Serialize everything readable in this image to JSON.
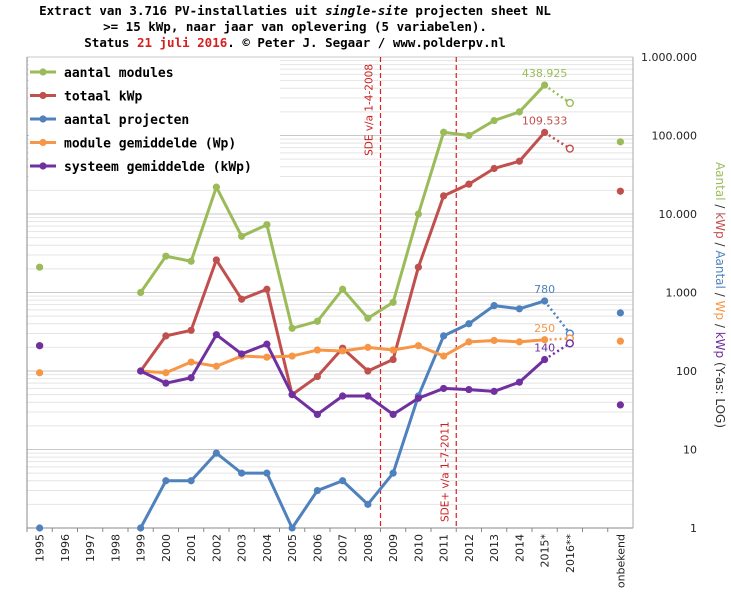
{
  "chart_data": {
    "type": "line",
    "title_lines": [
      [
        {
          "t": "Extract van 3.716 PV-installaties uit "
        },
        {
          "t": "single-site",
          "style": "it"
        },
        {
          "t": " projecten sheet NL"
        }
      ],
      [
        {
          "t": ">= 15 kWp, naar jaar van oplevering (5 variabelen)."
        }
      ],
      [
        {
          "t": "Status "
        },
        {
          "t": "21 juli 2016",
          "style": "red"
        },
        {
          "t": ". © Peter J. Segaar / www.polderpv.nl"
        }
      ]
    ],
    "categories": [
      "1995",
      "1996",
      "1997",
      "1998",
      "1999",
      "2000",
      "2001",
      "2002",
      "2003",
      "2004",
      "2005",
      "2006",
      "2007",
      "2008",
      "2009",
      "2010",
      "2011",
      "2012",
      "2013",
      "2014",
      "2015*",
      "2016**",
      "",
      "onbekend"
    ],
    "y_scale": "log",
    "ylim": [
      1,
      1000000
    ],
    "y_ticks": [
      {
        "v": 1,
        "label": "1"
      },
      {
        "v": 10,
        "label": "10"
      },
      {
        "v": 100,
        "label": "100"
      },
      {
        "v": 1000,
        "label": "1.000"
      },
      {
        "v": 10000,
        "label": "10.000"
      },
      {
        "v": 100000,
        "label": "100.000"
      },
      {
        "v": 1000000,
        "label": "1.000.000"
      }
    ],
    "right_axis_label": [
      {
        "t": "Aantal",
        "color": "#9bbb59"
      },
      {
        "t": " / ",
        "color": "#333333"
      },
      {
        "t": "kWp",
        "color": "#c0504d"
      },
      {
        "t": " / ",
        "color": "#333333"
      },
      {
        "t": "Aantal",
        "color": "#4f81bd"
      },
      {
        "t": " / ",
        "color": "#333333"
      },
      {
        "t": "Wp",
        "color": "#f79646"
      },
      {
        "t": " / ",
        "color": "#333333"
      },
      {
        "t": "kWp",
        "color": "#7030a0"
      },
      {
        "t": " (Y-as: LOG)",
        "color": "#333333"
      }
    ],
    "grid": true,
    "legend_position": "top-left",
    "vertical_markers": [
      {
        "between": [
          "2008",
          "2009"
        ],
        "label": "SDE v/a 1-4-2008",
        "label_pos": "top"
      },
      {
        "between": [
          "2011",
          "2012"
        ],
        "label": "SDE+ v/a 1-7-2011",
        "label_pos": "bottom"
      }
    ],
    "series": [
      {
        "name": "aantal modules",
        "color": "#9bbb59",
        "solid": {
          "1999": 1000,
          "2000": 2900,
          "2001": 2500,
          "2002": 22000,
          "2003": 5200,
          "2004": 7300,
          "2005": 350,
          "2006": 430,
          "2007": 1100,
          "2008": 470,
          "2009": 750,
          "2010": 10000,
          "2011": 110000,
          "2012": 100000,
          "2013": 155000,
          "2014": 200000,
          "2015*": 438925
        },
        "dotted": {
          "2015*": 438925,
          "2016**": 260000
        },
        "isolated": {
          "1995": 2100,
          "onbekend": 83000
        },
        "open": [
          "2016**"
        ],
        "annotation": {
          "at": "2015*",
          "label": "438.925"
        }
      },
      {
        "name": "totaal kWp",
        "color": "#c0504d",
        "solid": {
          "1999": 100,
          "2000": 280,
          "2001": 330,
          "2002": 2600,
          "2003": 820,
          "2004": 1100,
          "2005": 50,
          "2006": 85,
          "2007": 195,
          "2008": 100,
          "2009": 140,
          "2010": 2100,
          "2011": 17000,
          "2012": 24000,
          "2013": 38000,
          "2014": 47000,
          "2015*": 109533
        },
        "dotted": {
          "2015*": 109533,
          "2016**": 68000
        },
        "isolated": {
          "1995": 210,
          "onbekend": 19500
        },
        "open": [
          "2016**"
        ],
        "annotation": {
          "at": "2015*",
          "label": "109.533"
        }
      },
      {
        "name": "aantal projecten",
        "color": "#4f81bd",
        "solid": {
          "1999": 1,
          "2000": 4,
          "2001": 4,
          "2002": 9,
          "2003": 5,
          "2004": 5,
          "2005": 1,
          "2006": 3,
          "2007": 4,
          "2008": 2,
          "2009": 5,
          "2010": 48,
          "2011": 280,
          "2012": 400,
          "2013": 680,
          "2014": 620,
          "2015*": 780
        },
        "dotted": {
          "2015*": 780,
          "2016**": 300
        },
        "isolated": {
          "1995": 1,
          "onbekend": 550
        },
        "open": [
          "2016**"
        ],
        "annotation": {
          "at": "2015*",
          "label": "780"
        }
      },
      {
        "name": "module gemiddelde (Wp)",
        "color": "#f79646",
        "solid": {
          "1999": 100,
          "2000": 95,
          "2001": 130,
          "2002": 115,
          "2003": 155,
          "2004": 150,
          "2005": 155,
          "2006": 185,
          "2007": 180,
          "2008": 200,
          "2009": 185,
          "2010": 210,
          "2011": 155,
          "2012": 235,
          "2013": 245,
          "2014": 235,
          "2015*": 250
        },
        "dotted": {
          "2015*": 250,
          "2016**": 260
        },
        "isolated": {
          "1995": 95,
          "onbekend": 240
        },
        "open": [
          "2016**"
        ],
        "annotation": {
          "at": "2015*",
          "label": "250"
        }
      },
      {
        "name": "systeem gemiddelde (kWp)",
        "color": "#7030a0",
        "solid": {
          "1999": 100,
          "2000": 70,
          "2001": 82,
          "2002": 290,
          "2003": 165,
          "2004": 220,
          "2005": 50,
          "2006": 28,
          "2007": 48,
          "2008": 48,
          "2009": 28,
          "2010": 45,
          "2011": 60,
          "2012": 58,
          "2013": 55,
          "2014": 72,
          "2015*": 140
        },
        "dotted": {
          "2015*": 140,
          "2016**": 225
        },
        "isolated": {
          "1995": 210,
          "onbekend": 37
        },
        "open": [
          "2016**"
        ],
        "annotation": {
          "at": "2015*",
          "label": "140"
        }
      }
    ]
  }
}
